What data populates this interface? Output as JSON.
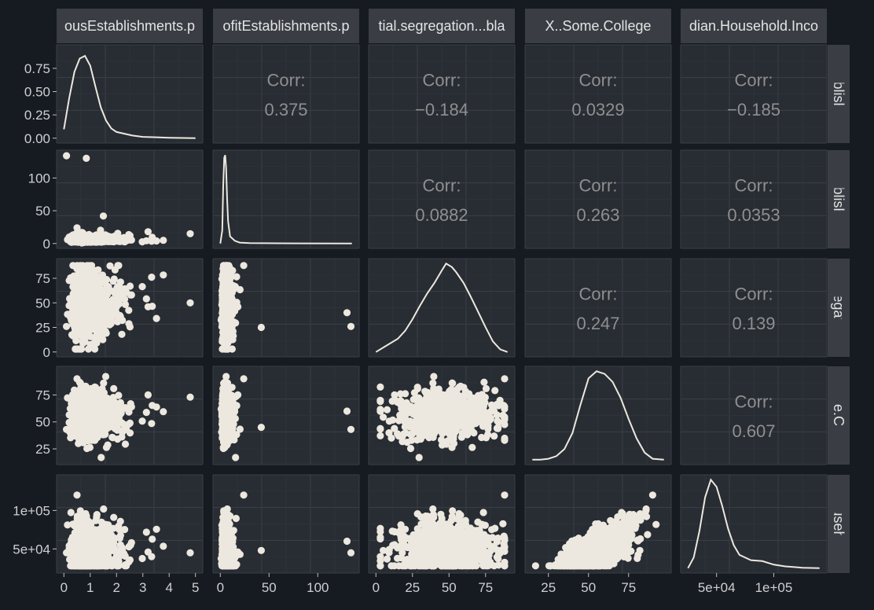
{
  "chart_data": {
    "type": "scatter",
    "subtype": "pairs-matrix",
    "variables": [
      "…ousEstablishments.p…",
      "…ofitEstablishments.p…",
      "…tial.segregation...bla…",
      "X..Some.College",
      "…dian.Household.Inco…"
    ],
    "column_strips": [
      "ousEstablishments.p",
      "ofitEstablishments.p",
      "tial.segregation...bla",
      "X..Some.College",
      "dian.Household.Inco"
    ],
    "row_strips": [
      "Establishmer",
      "Establishmer",
      "segregation..",
      "..Some.College",
      "..Household.I"
    ],
    "ranges": [
      [
        0,
        5
      ],
      [
        0,
        135
      ],
      [
        0,
        90
      ],
      [
        15,
        97
      ],
      [
        25000,
        140000
      ]
    ],
    "corr_label": "Corr:",
    "correlations": [
      {
        "row": 0,
        "col": 1,
        "value": "0.375"
      },
      {
        "row": 0,
        "col": 2,
        "value": "−0.184"
      },
      {
        "row": 0,
        "col": 3,
        "value": "0.0329"
      },
      {
        "row": 0,
        "col": 4,
        "value": "−0.185"
      },
      {
        "row": 1,
        "col": 2,
        "value": "0.0882"
      },
      {
        "row": 1,
        "col": 3,
        "value": "0.263"
      },
      {
        "row": 1,
        "col": 4,
        "value": "0.0353"
      },
      {
        "row": 2,
        "col": 3,
        "value": "0.247"
      },
      {
        "row": 2,
        "col": 4,
        "value": "0.139"
      },
      {
        "row": 3,
        "col": 4,
        "value": "0.607"
      }
    ],
    "y_ticks": [
      {
        "row": 0,
        "values": [
          0,
          0.25,
          0.5,
          0.75
        ],
        "labels": [
          "0.00",
          "0.25",
          "0.50",
          "0.75"
        ]
      },
      {
        "row": 1,
        "values": [
          0,
          50,
          100
        ],
        "labels": [
          "0",
          "50",
          "100"
        ]
      },
      {
        "row": 2,
        "values": [
          0,
          25,
          50,
          75
        ],
        "labels": [
          "0",
          "25",
          "50",
          "75"
        ]
      },
      {
        "row": 3,
        "values": [
          25,
          50,
          75
        ],
        "labels": [
          "25",
          "50",
          "75"
        ]
      },
      {
        "row": 4,
        "values": [
          50000,
          100000
        ],
        "labels": [
          "5e+04",
          "1e+05"
        ]
      }
    ],
    "x_ticks": [
      {
        "col": 0,
        "values": [
          0,
          1,
          2,
          3,
          4,
          5
        ],
        "labels": [
          "0",
          "1",
          "2",
          "3",
          "4",
          "5"
        ]
      },
      {
        "col": 1,
        "values": [
          0,
          50,
          100
        ],
        "labels": [
          "0",
          "50",
          "100"
        ]
      },
      {
        "col": 2,
        "values": [
          0,
          25,
          50,
          75
        ],
        "labels": [
          "0",
          "25",
          "50",
          "75"
        ]
      },
      {
        "col": 3,
        "values": [
          25,
          50,
          75
        ],
        "labels": [
          "25",
          "50",
          "75"
        ]
      },
      {
        "col": 4,
        "values": [
          50000,
          100000
        ],
        "labels": [
          "5e+04",
          "1e+05"
        ]
      }
    ],
    "densities": [
      {
        "var": 0,
        "x": [
          0,
          0.2,
          0.4,
          0.6,
          0.8,
          1.0,
          1.2,
          1.4,
          1.6,
          1.8,
          2.0,
          2.3,
          2.6,
          3.0,
          3.5,
          4.0,
          5.0
        ],
        "y": [
          0.1,
          0.45,
          0.75,
          0.9,
          0.93,
          0.82,
          0.58,
          0.35,
          0.2,
          0.11,
          0.07,
          0.05,
          0.03,
          0.015,
          0.01,
          0.005,
          0
        ]
      },
      {
        "var": 1,
        "x": [
          0,
          2,
          3,
          4,
          5,
          6,
          7,
          8,
          10,
          15,
          20,
          30,
          60,
          135
        ],
        "y": [
          0,
          0.15,
          0.65,
          0.97,
          1.0,
          0.85,
          0.5,
          0.25,
          0.08,
          0.03,
          0.01,
          0.005,
          0.002,
          0
        ]
      },
      {
        "var": 2,
        "x": [
          0,
          5,
          10,
          15,
          20,
          25,
          30,
          35,
          40,
          45,
          48,
          52,
          55,
          60,
          65,
          70,
          75,
          80,
          85,
          90
        ],
        "y": [
          0,
          0.05,
          0.1,
          0.15,
          0.24,
          0.37,
          0.52,
          0.66,
          0.78,
          0.92,
          1.0,
          0.96,
          0.9,
          0.78,
          0.62,
          0.45,
          0.28,
          0.12,
          0.03,
          0
        ]
      },
      {
        "var": 3,
        "x": [
          15,
          20,
          25,
          30,
          35,
          40,
          45,
          50,
          55,
          60,
          65,
          70,
          75,
          80,
          85,
          90,
          97
        ],
        "y": [
          0,
          0,
          0.01,
          0.04,
          0.12,
          0.3,
          0.62,
          0.92,
          1.0,
          0.97,
          0.88,
          0.7,
          0.46,
          0.24,
          0.08,
          0.01,
          0
        ]
      },
      {
        "var": 4,
        "x": [
          25000,
          30000,
          35000,
          40000,
          45000,
          50000,
          55000,
          60000,
          65000,
          70000,
          80000,
          90000,
          100000,
          110000,
          125000,
          140000
        ],
        "y": [
          0,
          0.12,
          0.42,
          0.8,
          1.0,
          0.92,
          0.7,
          0.45,
          0.26,
          0.15,
          0.09,
          0.08,
          0.04,
          0.02,
          0.005,
          0
        ]
      }
    ],
    "grid": true,
    "background": "#161b22",
    "panel_color": "#282c33",
    "strip_color": "#3a3d44",
    "point_color": "#ece8df",
    "line_color": "#ece8df"
  }
}
